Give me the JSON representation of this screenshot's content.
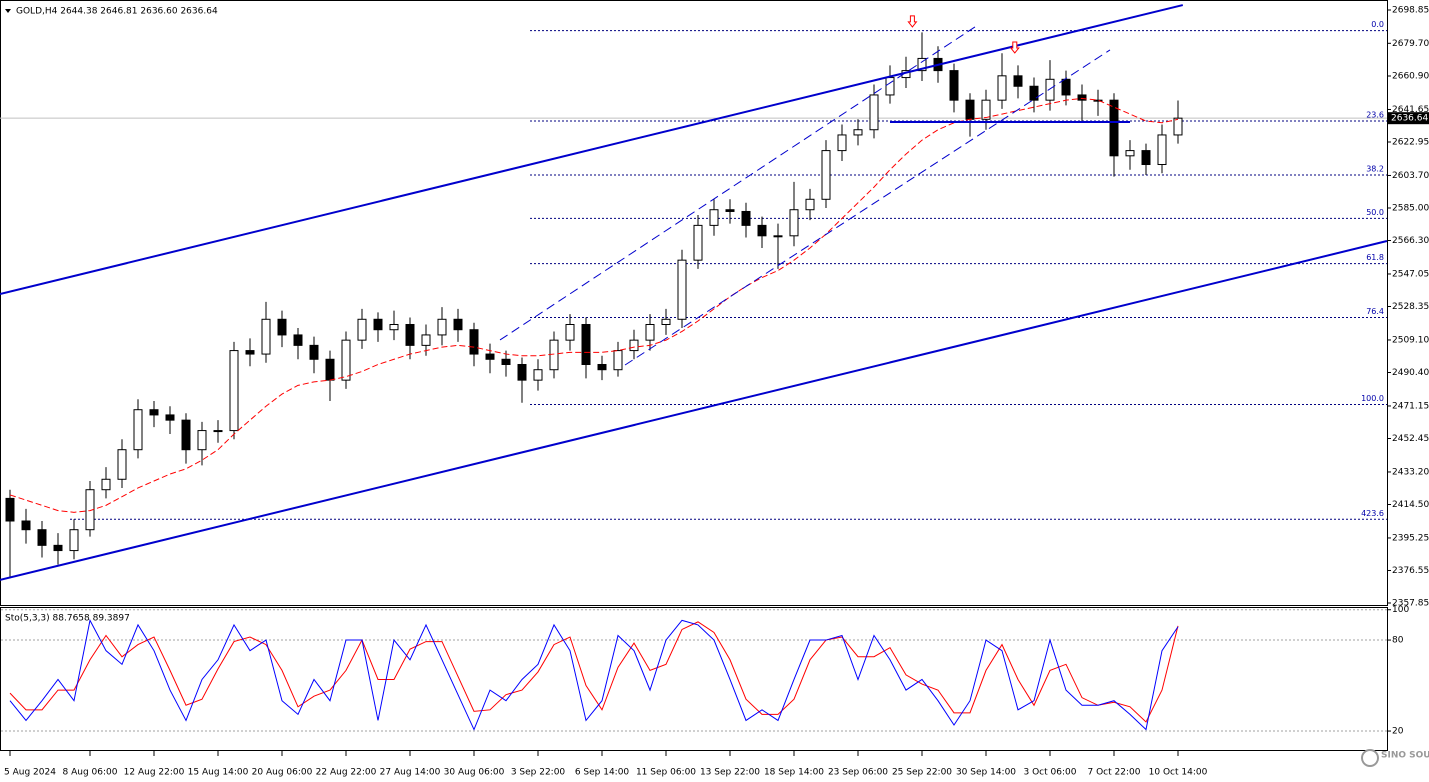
{
  "chart_data": [
    {
      "type": "candlestick",
      "title": "GOLD,H4  2644.38 2646.81 2636.60 2636.64",
      "categories": [
        "5 Aug 2024",
        null,
        null,
        null,
        null,
        "8 Aug 06:00",
        null,
        null,
        null,
        "12 Aug 22:00",
        null,
        null,
        null,
        "15 Aug 14:00",
        null,
        null,
        null,
        "20 Aug 06:00",
        null,
        null,
        null,
        "22 Aug 22:00",
        null,
        null,
        null,
        "27 Aug 14:00",
        null,
        null,
        null,
        "30 Aug 06:00",
        null,
        null,
        null,
        "3 Sep 22:00",
        null,
        null,
        null,
        "6 Sep 14:00",
        null,
        null,
        null,
        "11 Sep 06:00",
        null,
        null,
        null,
        "13 Sep 22:00",
        null,
        null,
        null,
        "18 Sep 14:00",
        null,
        null,
        null,
        "23 Sep 06:00",
        null,
        null,
        null,
        "25 Sep 22:00",
        null,
        null,
        null,
        "30 Sep 14:00",
        null,
        null,
        null,
        "3 Oct 06:00",
        null,
        null,
        null,
        "7 Oct 22:00",
        null,
        null,
        null,
        "10 Oct 14:00"
      ],
      "open": [
        2418,
        2405,
        2400,
        2391,
        2388,
        2400,
        2423,
        2429,
        2446,
        2469,
        2466,
        2463,
        2446,
        2457,
        2457,
        2503,
        2501,
        2521,
        2512,
        2506,
        2498,
        2486,
        2509,
        2521,
        2515,
        2518,
        2506,
        2512,
        2521,
        2515,
        2501,
        2498,
        2495,
        2486,
        2492,
        2509,
        2518,
        2495,
        2492,
        2503,
        2509,
        2518,
        2521,
        2555,
        2575,
        2584,
        2583,
        2575,
        2569,
        2569,
        2584,
        2590,
        2618,
        2627,
        2630,
        2650,
        2660,
        2664,
        2671,
        2664,
        2647,
        2636,
        2647,
        2661,
        2655,
        2647,
        2659,
        2650,
        2647,
        2647,
        2615,
        2618,
        2610,
        2627
      ],
      "high": [
        2423,
        2412,
        2405,
        2398,
        2406,
        2428,
        2436,
        2452,
        2475,
        2474,
        2471,
        2467,
        2462,
        2463,
        2508,
        2510,
        2531,
        2526,
        2516,
        2511,
        2503,
        2514,
        2527,
        2525,
        2526,
        2522,
        2518,
        2528,
        2527,
        2519,
        2507,
        2503,
        2499,
        2498,
        2514,
        2524,
        2522,
        2500,
        2508,
        2515,
        2524,
        2527,
        2561,
        2581,
        2590,
        2590,
        2588,
        2580,
        2576,
        2600,
        2596,
        2624,
        2633,
        2636,
        2656,
        2667,
        2672,
        2686,
        2678,
        2668,
        2651,
        2653,
        2674,
        2667,
        2660,
        2670,
        2664,
        2656,
        2653,
        2651,
        2624,
        2622,
        2633,
        2646.81
      ],
      "low": [
        2372,
        2392,
        2384,
        2380,
        2383,
        2396,
        2418,
        2424,
        2441,
        2459,
        2455,
        2438,
        2437,
        2450,
        2452,
        2494,
        2496,
        2505,
        2498,
        2490,
        2474,
        2481,
        2504,
        2508,
        2509,
        2498,
        2500,
        2506,
        2508,
        2494,
        2490,
        2488,
        2473,
        2480,
        2487,
        2503,
        2487,
        2486,
        2488,
        2498,
        2503,
        2512,
        2516,
        2550,
        2569,
        2576,
        2568,
        2562,
        2550,
        2563,
        2578,
        2585,
        2612,
        2621,
        2625,
        2645,
        2654,
        2658,
        2657,
        2640,
        2626,
        2630,
        2642,
        2648,
        2640,
        2641,
        2644,
        2634,
        2638,
        2603,
        2607,
        2604,
        2605,
        2622
      ],
      "close": [
        2405,
        2400,
        2391,
        2388,
        2400,
        2423,
        2429,
        2446,
        2469,
        2466,
        2463,
        2446,
        2457,
        2457,
        2503,
        2501,
        2521,
        2512,
        2506,
        2498,
        2486,
        2509,
        2521,
        2515,
        2518,
        2506,
        2512,
        2521,
        2515,
        2501,
        2498,
        2495,
        2486,
        2492,
        2509,
        2518,
        2495,
        2492,
        2503,
        2509,
        2518,
        2521,
        2555,
        2575,
        2584,
        2583,
        2575,
        2569,
        2569,
        2584,
        2590,
        2618,
        2627,
        2630,
        2650,
        2660,
        2664,
        2671,
        2664,
        2647,
        2636,
        2647,
        2661,
        2655,
        2647,
        2659,
        2650,
        2647,
        2647,
        2615,
        2618,
        2610,
        2627,
        2636.64
      ],
      "up_color": "#ffffff",
      "down_color": "#000000",
      "ma": {
        "color": "#ff0000",
        "values": [
          2420,
          2417,
          2414,
          2411,
          2410,
          2411,
          2414,
          2419,
          2424,
          2428,
          2432,
          2435,
          2440,
          2446,
          2455,
          2463,
          2471,
          2478,
          2483,
          2485,
          2486,
          2488,
          2491,
          2495,
          2498,
          2501,
          2503,
          2505,
          2506,
          2505,
          2503,
          2501,
          2500,
          2500,
          2501,
          2502,
          2502,
          2502,
          2503,
          2505,
          2506,
          2509,
          2514,
          2520,
          2527,
          2534,
          2540,
          2545,
          2549,
          2555,
          2562,
          2570,
          2579,
          2588,
          2597,
          2607,
          2616,
          2624,
          2630,
          2634,
          2636,
          2637,
          2639,
          2641,
          2643,
          2645,
          2647,
          2648,
          2647,
          2643,
          2639,
          2635,
          2634,
          2636
        ]
      },
      "ylim": [
        2356.7,
        2704.6
      ],
      "yticks": [
        2698.85,
        {
          "value": 2679.7,
          "label": "2679.70"
        },
        {
          "value": 2660.9,
          "label": "2660.90"
        },
        2641.65,
        2622.95,
        {
          "value": 2603.7,
          "label": "2603.70"
        },
        {
          "value": 2585,
          "label": "2585.00"
        },
        {
          "value": 2566.3,
          "label": "2566.30"
        },
        2547.05,
        2528.35,
        {
          "value": 2509.1,
          "label": "2509.10"
        },
        {
          "value": 2490.4,
          "label": "2490.40"
        },
        2471.15,
        2452.45,
        {
          "value": 2433.2,
          "label": "2433.20"
        },
        {
          "value": 2414.5,
          "label": "2414.50"
        },
        2395.25,
        2376.55,
        2357.85
      ],
      "last_price": 2636.64,
      "fib_levels": [
        {
          "label": "0.0",
          "price": 2687
        },
        {
          "label": "23.6",
          "price": 2635
        },
        {
          "label": "38.2",
          "price": 2604
        },
        {
          "label": "50.0",
          "price": 2579
        },
        {
          "label": "61.8",
          "price": 2553
        },
        {
          "label": "76.4",
          "price": 2522
        },
        {
          "label": "100.0",
          "price": 2472
        },
        {
          "label": "423.6",
          "price": 2406
        }
      ],
      "trendlines": [
        {
          "from": [
            -0.625,
            2535.5
          ],
          "to": [
            73.3,
            2701.7
          ],
          "style": "solid"
        },
        {
          "from": [
            -0.625,
            2371.1
          ],
          "to": [
            86.06,
            2566.0
          ],
          "style": "solid"
        },
        {
          "from": [
            30.625,
            2509.1
          ],
          "to": [
            60.31,
            2689.1
          ],
          "style": "dashed"
        },
        {
          "from": [
            38.44,
            2494.7
          ],
          "to": [
            68.75,
            2675.9
          ],
          "style": "dashed"
        },
        {
          "from": [
            55,
            2634.45
          ],
          "to": [
            70,
            2634.45
          ],
          "style": "solid"
        }
      ],
      "markers": [
        {
          "x": 56.4,
          "price": 2692
        },
        {
          "x": 62.8,
          "price": 2677
        }
      ],
      "color": "#0000cc",
      "watermark": "SINO SOUND"
    },
    {
      "type": "line",
      "title": "Sto(5,3,3) 88.7658 89.3897",
      "series": [
        {
          "color": "#0000ff",
          "values": [
            40,
            27,
            40,
            54,
            40,
            93,
            73,
            64,
            90,
            73,
            47,
            27,
            54,
            67,
            90,
            73,
            80,
            40,
            31,
            54,
            40,
            80,
            80,
            27,
            80,
            67,
            90,
            67,
            44,
            21,
            47,
            40,
            54,
            64,
            90,
            73,
            27,
            40,
            83,
            73,
            47,
            80,
            93,
            90,
            80,
            54,
            27,
            34,
            27,
            54,
            80,
            80,
            83,
            54,
            83,
            67,
            47,
            54,
            40,
            24,
            40,
            80,
            73,
            34,
            40,
            80,
            47,
            37,
            37,
            40,
            31,
            21,
            73,
            88.7658
          ]
        },
        {
          "color": "#ff0000",
          "values": [
            45,
            34,
            34,
            47,
            47,
            67,
            83,
            69,
            77,
            82,
            60,
            37,
            41,
            61,
            79,
            82,
            77,
            60,
            36,
            43,
            47,
            60,
            80,
            54,
            54,
            74,
            79,
            79,
            56,
            33,
            34,
            44,
            47,
            59,
            77,
            82,
            50,
            34,
            62,
            78,
            60,
            64,
            87,
            92,
            85,
            67,
            41,
            31,
            31,
            41,
            67,
            80,
            82,
            69,
            69,
            75,
            57,
            51,
            47,
            32,
            32,
            60,
            77,
            54,
            37,
            60,
            64,
            42,
            37,
            39,
            36,
            26,
            47,
            89.3897
          ]
        }
      ],
      "ylim": [
        7.5,
        101.8
      ],
      "yticks": [
        100,
        80,
        20
      ],
      "grid": true
    }
  ]
}
